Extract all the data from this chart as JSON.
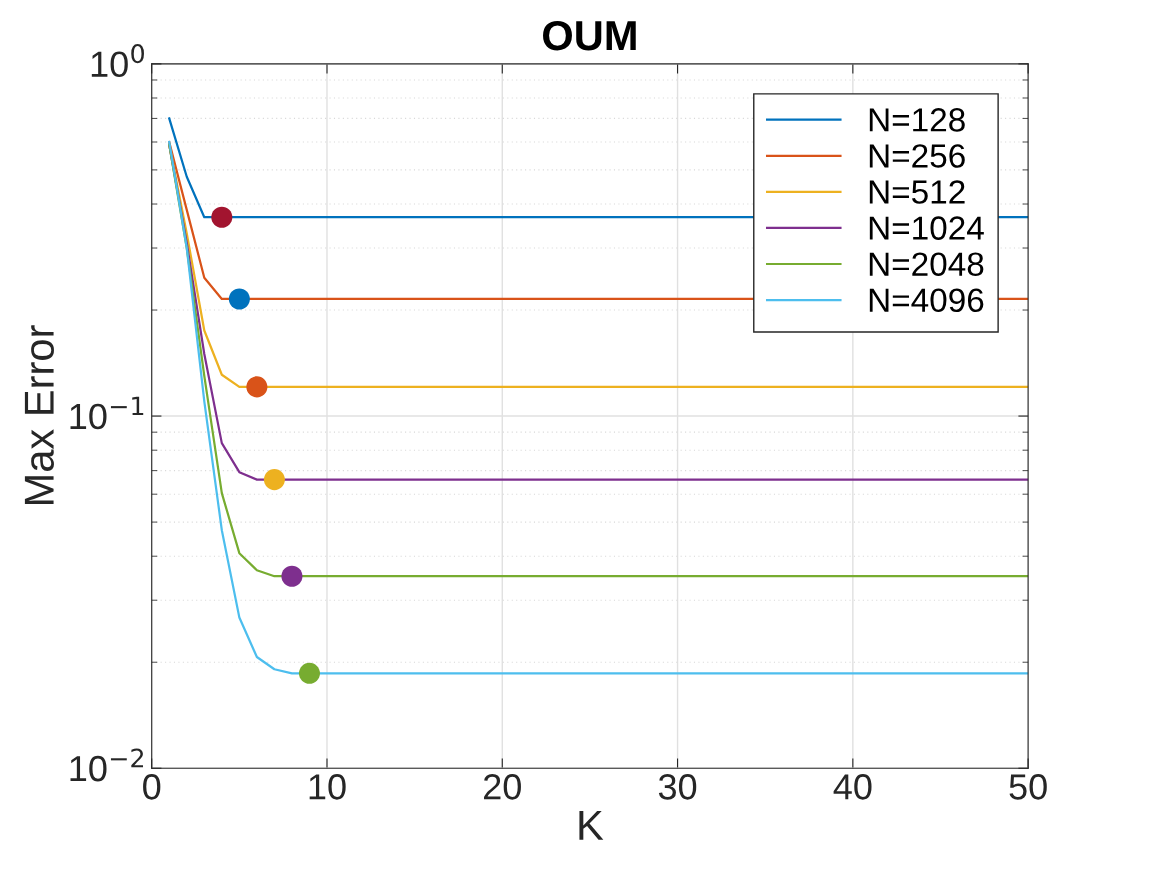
{
  "chart_data": {
    "type": "line",
    "title": "OUM",
    "xlabel": "K",
    "ylabel": "Max Error",
    "series": [
      {
        "name": "N=128",
        "color": "#0072bd",
        "x": [
          1,
          2,
          3,
          50
        ],
        "values": [
          0.7,
          0.478,
          0.367,
          0.367
        ]
      },
      {
        "name": "N=256",
        "color": "#d95319",
        "x": [
          1,
          2,
          3,
          4,
          50
        ],
        "values": [
          0.6,
          0.385,
          0.247,
          0.215,
          0.215
        ]
      },
      {
        "name": "N=512",
        "color": "#edb120",
        "x": [
          1,
          2,
          3,
          4,
          5,
          50
        ],
        "values": [
          0.59,
          0.33,
          0.175,
          0.131,
          0.121,
          0.121
        ]
      },
      {
        "name": "N=1024",
        "color": "#7e2f8e",
        "x": [
          1,
          2,
          3,
          4,
          5,
          6,
          50
        ],
        "values": [
          0.59,
          0.31,
          0.15,
          0.0838,
          0.0693,
          0.066,
          0.066
        ]
      },
      {
        "name": "N=2048",
        "color": "#77ac30",
        "x": [
          1,
          2,
          3,
          4,
          5,
          6,
          7,
          50
        ],
        "values": [
          0.59,
          0.3,
          0.13,
          0.0604,
          0.0408,
          0.0365,
          0.0351,
          0.0351
        ]
      },
      {
        "name": "N=4096",
        "color": "#4dbeee",
        "x": [
          1,
          2,
          3,
          4,
          5,
          6,
          7,
          8,
          50
        ],
        "values": [
          0.6,
          0.3,
          0.11,
          0.0474,
          0.0268,
          0.0207,
          0.0191,
          0.0186,
          0.0186
        ]
      },
      {
        "type": "scatter",
        "x": [
          4,
          5,
          6,
          7,
          8,
          9
        ],
        "values": [
          0.367,
          0.215,
          0.121,
          0.066,
          0.0351,
          0.0186
        ],
        "colors": [
          "#a2142f",
          "#0072bd",
          "#d95319",
          "#edb120",
          "#7e2f8e",
          "#77ac30"
        ],
        "marker": "circle"
      }
    ],
    "log": "y",
    "xlim": [
      0,
      50
    ],
    "xticks": [
      0,
      10,
      20,
      30,
      40,
      50
    ],
    "ylim": [
      0.01,
      1
    ],
    "yticks": [
      {
        "value": 0.01,
        "label": "10$^{−2}$"
      },
      {
        "value": 0.1,
        "label": "10$^{−1}$"
      },
      {
        "value": 1,
        "label": "10$^{0}$"
      }
    ],
    "grid": true,
    "legend": "top right"
  }
}
